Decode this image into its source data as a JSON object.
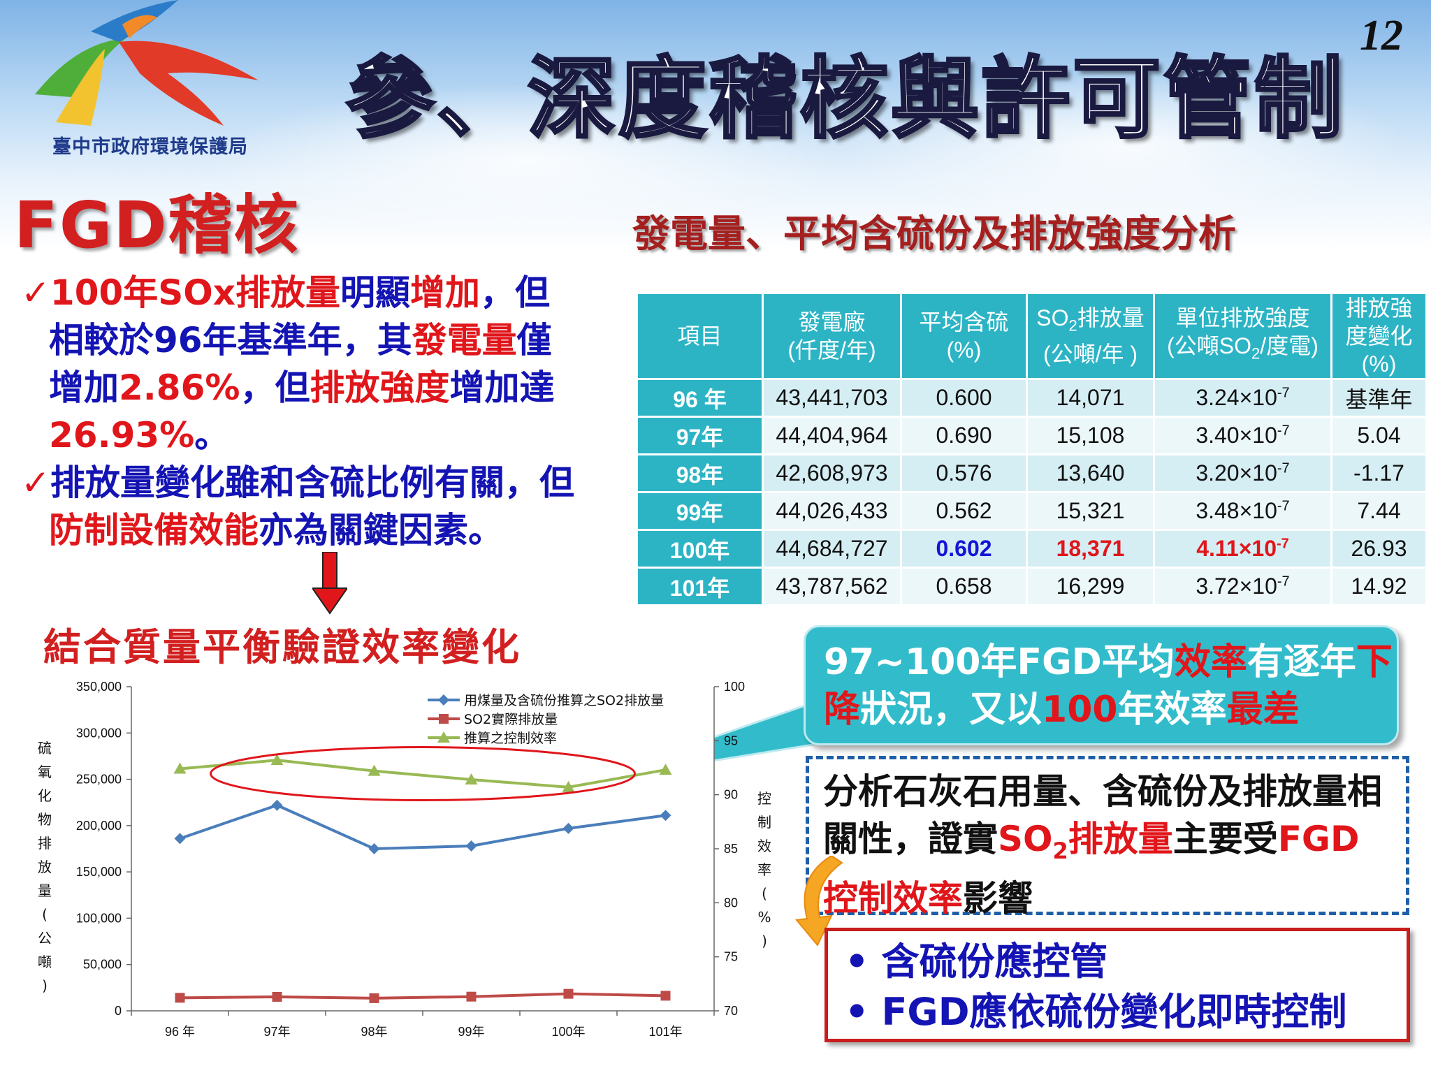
{
  "header": {
    "logo_caption": "臺中市政府環境保護局",
    "page_title": "參、深度稽核與許可管制",
    "page_number": "12"
  },
  "section_heading": "FGD稽核",
  "bullets": {
    "b1": {
      "check": "✓",
      "p1": "100年SOx排放量",
      "p2": "明顯",
      "p3": "增加",
      "p4": "，但",
      "l2": "相較於96年基準年，其",
      "l2r": "發電量",
      "l2e": "僅",
      "l3": "增加",
      "l3r": "2.86%",
      "l3b": "，但",
      "l3r2": "排放強度",
      "l3e": "增加達",
      "l4": "26.93%",
      "l4e": "。"
    },
    "b2": {
      "check": "✓",
      "l1": "排放量變化雖和含硫比例有關，但",
      "l2r": "防制設備效能",
      "l2e": "亦為關鍵因素。"
    }
  },
  "chart_heading": "結合質量平衡驗證效率變化",
  "table": {
    "title": "發電量、平均含硫份及排放強度分析",
    "headers": {
      "item": "項目",
      "plant_1": "發電廠",
      "plant_2": "(仟度/年)",
      "sulfur_1": "平均含硫",
      "sulfur_2": "(%)",
      "so2_1a": "SO",
      "so2_1b": "2",
      "so2_1c": "排放量",
      "so2_2": "(公噸/年 )",
      "unit_1": "單位排放強度",
      "unit_2a": "(公噸SO",
      "unit_2b": "2",
      "unit_2c": "/度電)",
      "change_1": "排放強",
      "change_2": "度變化",
      "change_3": "(%)"
    },
    "rows": [
      {
        "year": "96 年",
        "plant": "43,441,703",
        "sulfur": "0.600",
        "so2": "14,071",
        "unit": "3.24×10",
        "exp": "-7",
        "change": "基準年"
      },
      {
        "year": "97年",
        "plant": "44,404,964",
        "sulfur": "0.690",
        "so2": "15,108",
        "unit": "3.40×10",
        "exp": "-7",
        "change": "5.04"
      },
      {
        "year": "98年",
        "plant": "42,608,973",
        "sulfur": "0.576",
        "so2": "13,640",
        "unit": "3.20×10",
        "exp": "-7",
        "change": "-1.17"
      },
      {
        "year": "99年",
        "plant": "44,026,433",
        "sulfur": "0.562",
        "so2": "15,321",
        "unit": "3.48×10",
        "exp": "-7",
        "change": "7.44"
      },
      {
        "year": "100年",
        "plant": "44,684,727",
        "sulfur": "0.602",
        "so2": "18,371",
        "unit": "4.11×10",
        "exp": "-7",
        "change": "26.93"
      },
      {
        "year": "101年",
        "plant": "43,787,562",
        "sulfur": "0.658",
        "so2": "16,299",
        "unit": "3.72×10",
        "exp": "-7",
        "change": "14.92"
      }
    ]
  },
  "callout": {
    "l1a": "97~100年FGD平均",
    "l1r": "效率",
    "l1b": "有逐年",
    "l1r2": "下",
    "l2r": "降",
    "l2a": "狀況，又以",
    "l2r2": "100",
    "l2b": "年效率",
    "l2r3": "最差"
  },
  "analysis": {
    "l1": "分析石灰石用量、含硫份及排放量相",
    "l2a": "關性，證實",
    "l2r1": "SO",
    "l2r2": "2",
    "l2r3": "排放量",
    "l2b": "主要受",
    "l2r4": "FGD",
    "l3r": "控制效率",
    "l3b": "影響"
  },
  "conclusion": {
    "bullet": "•",
    "items": [
      "含硫份應控管",
      "FGD應依硫份變化即時控制"
    ]
  },
  "colors": {
    "title_red": "#d21f1f",
    "text_blue": "#1414b4",
    "highlight_red": "#e0161b",
    "table_teal": "#2cb4c5",
    "series_blue": "#4a7ebb",
    "series_red": "#be4b48",
    "series_green": "#98b954"
  },
  "chart_data": {
    "type": "line",
    "categories": [
      "96 年",
      "97年",
      "98年",
      "99年",
      "100年",
      "101年"
    ],
    "series": [
      {
        "name": "用煤量及含硫份推算之SO2排放量",
        "axis": "left",
        "color": "#4a7ebb",
        "marker": "diamond",
        "values": [
          186000,
          222000,
          175000,
          178000,
          197000,
          211000
        ]
      },
      {
        "name": "SO2實際排放量",
        "axis": "left",
        "color": "#be4b48",
        "marker": "square",
        "values": [
          14071,
          15108,
          13640,
          15321,
          18371,
          16299
        ]
      },
      {
        "name": "推算之控制效率",
        "axis": "right",
        "color": "#98b954",
        "marker": "triangle",
        "values": [
          92.4,
          93.2,
          92.2,
          91.4,
          90.7,
          92.3
        ]
      }
    ],
    "left_axis": {
      "label_chars": [
        "硫",
        "氧",
        "化",
        "物",
        "排",
        "放",
        "量",
        "(",
        "公",
        "噸",
        ")"
      ],
      "ylim": [
        0,
        350000
      ],
      "ticks": [
        "0",
        "50,000",
        "100,000",
        "150,000",
        "200,000",
        "250,000",
        "300,000",
        "350,000"
      ],
      "tick_values": [
        0,
        50000,
        100000,
        150000,
        200000,
        250000,
        300000,
        350000
      ]
    },
    "right_axis": {
      "label_chars": [
        "控",
        "制",
        "效",
        "率",
        "(",
        "%",
        ")"
      ],
      "ylim": [
        70,
        100
      ],
      "ticks": [
        "70",
        "75",
        "80",
        "85",
        "90",
        "95",
        "100"
      ],
      "tick_values": [
        70,
        75,
        80,
        85,
        90,
        95,
        100
      ]
    },
    "legend_position": "top-right",
    "grid": false,
    "highlight": "ellipse around control-efficiency series 97年–100年"
  }
}
